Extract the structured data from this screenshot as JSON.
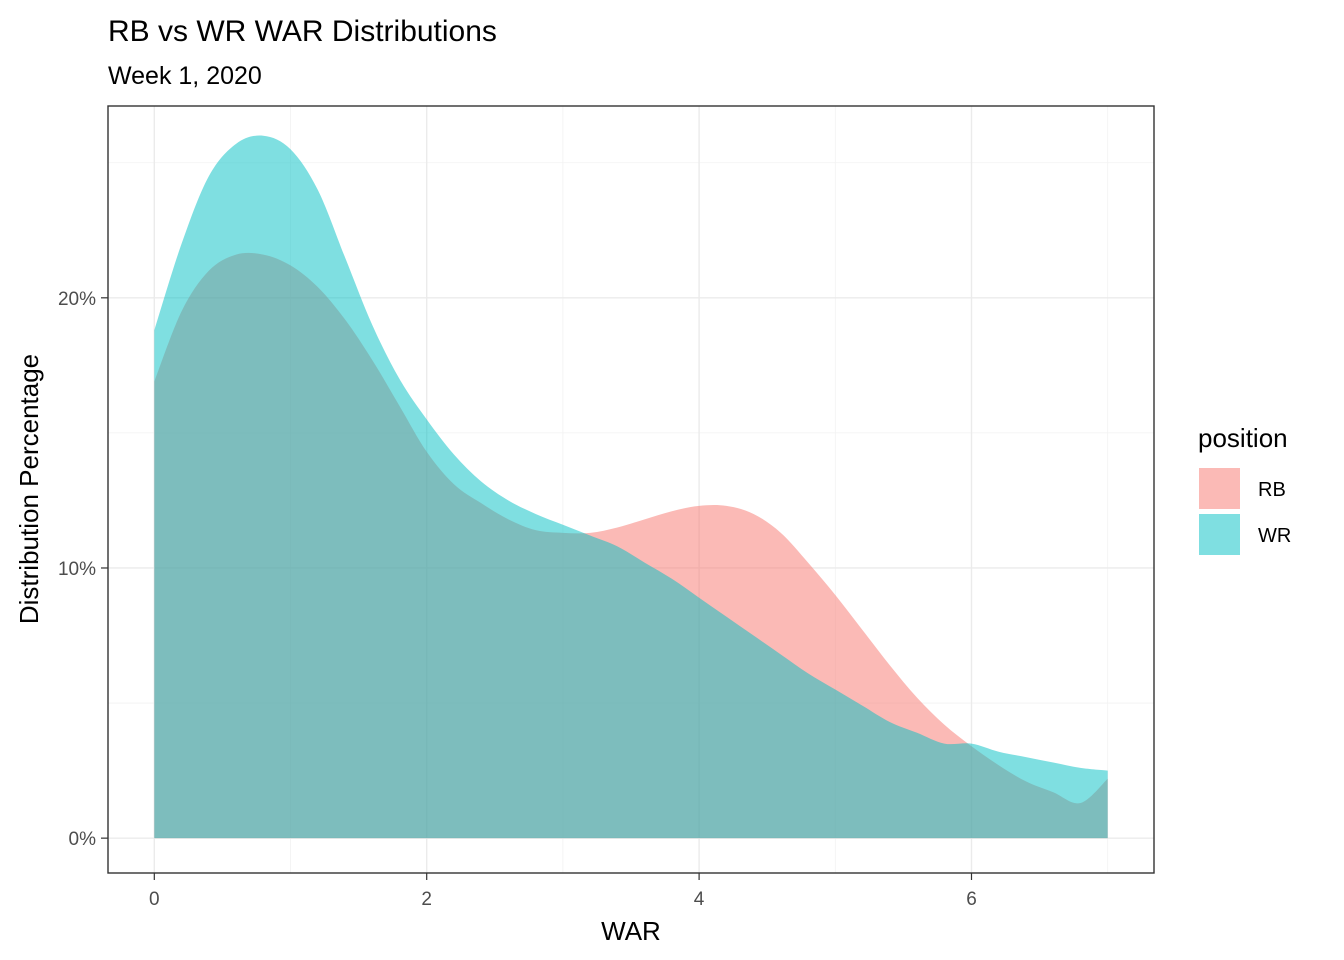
{
  "chart_data": {
    "type": "area",
    "title": "RB vs WR WAR Distributions",
    "subtitle": "Week 1, 2020",
    "xlabel": "WAR",
    "ylabel": "Distribution Percentage",
    "xlim": [
      -0.34,
      7.34
    ],
    "ylim": [
      -0.0129,
      0.271
    ],
    "x_ticks": [
      0,
      2,
      4,
      6
    ],
    "x_tick_labels": [
      "0",
      "2",
      "4",
      "6"
    ],
    "x_minor_ticks": [
      1,
      3,
      5,
      7
    ],
    "y_ticks": [
      0,
      0.1,
      0.2
    ],
    "y_tick_labels": [
      "0%",
      "10%",
      "20%"
    ],
    "y_minor_ticks": [
      0.05,
      0.15,
      0.25
    ],
    "grid": true,
    "legend": {
      "title": "position",
      "position": "right"
    },
    "series": [
      {
        "name": "RB",
        "color": "#F8766D",
        "alpha": 0.5,
        "x": [
          0,
          0.2,
          0.4,
          0.6,
          0.8,
          1.0,
          1.2,
          1.4,
          1.6,
          1.8,
          2.0,
          2.2,
          2.4,
          2.6,
          2.8,
          3.0,
          3.2,
          3.4,
          3.6,
          3.8,
          4.0,
          4.2,
          4.4,
          4.6,
          4.8,
          5.0,
          5.2,
          5.4,
          5.6,
          5.8,
          6.0,
          6.2,
          6.4,
          6.6,
          6.8,
          7.0
        ],
        "values": [
          0.169,
          0.195,
          0.21,
          0.216,
          0.216,
          0.212,
          0.204,
          0.192,
          0.177,
          0.16,
          0.143,
          0.131,
          0.124,
          0.118,
          0.114,
          0.113,
          0.113,
          0.115,
          0.118,
          0.121,
          0.123,
          0.123,
          0.12,
          0.113,
          0.102,
          0.09,
          0.077,
          0.064,
          0.052,
          0.042,
          0.034,
          0.027,
          0.021,
          0.017,
          0.013,
          0.022
        ]
      },
      {
        "name": "WR",
        "color": "#00BFC4",
        "alpha": 0.5,
        "x": [
          0,
          0.2,
          0.4,
          0.6,
          0.8,
          1.0,
          1.2,
          1.4,
          1.6,
          1.8,
          2.0,
          2.2,
          2.4,
          2.6,
          2.8,
          3.0,
          3.2,
          3.4,
          3.6,
          3.8,
          4.0,
          4.2,
          4.4,
          4.6,
          4.8,
          5.0,
          5.2,
          5.4,
          5.6,
          5.8,
          6.0,
          6.2,
          6.4,
          6.6,
          6.8,
          7.0
        ],
        "values": [
          0.188,
          0.22,
          0.245,
          0.257,
          0.26,
          0.255,
          0.24,
          0.215,
          0.19,
          0.17,
          0.155,
          0.142,
          0.132,
          0.125,
          0.12,
          0.116,
          0.112,
          0.108,
          0.102,
          0.096,
          0.089,
          0.082,
          0.075,
          0.068,
          0.061,
          0.055,
          0.049,
          0.043,
          0.039,
          0.035,
          0.035,
          0.032,
          0.03,
          0.028,
          0.026,
          0.025
        ]
      }
    ]
  }
}
